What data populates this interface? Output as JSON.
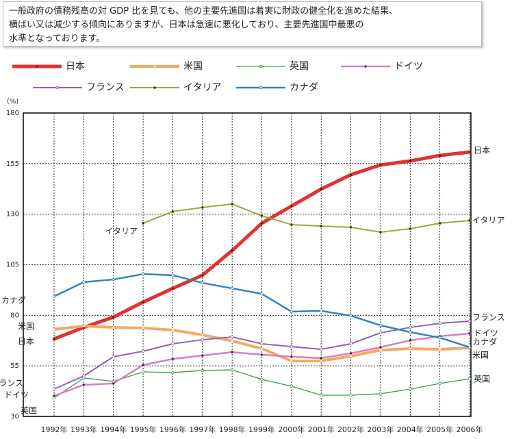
{
  "note": [
    "一般政府の債務残高の対 GDP 比を見ても、他の主要先進国は着実に財政の健全化を進めた結果、",
    "横ばい又は減少する傾向にありますが、日本は急速に悪化しており、主要先進国中最悪の",
    "水準となっております。"
  ],
  "chart_data": {
    "type": "line",
    "y_label": "(%)",
    "categories": [
      "1992年",
      "1993年",
      "1994年",
      "1995年",
      "1996年",
      "1997年",
      "1998年",
      "1999年",
      "2000年",
      "2001年",
      "2002年",
      "2003年",
      "2004年",
      "2005年",
      "2006年"
    ],
    "ylim": [
      30,
      180
    ],
    "yticks": [
      30,
      55,
      80,
      105,
      130,
      155,
      180
    ],
    "grid": true,
    "series": [
      {
        "name": "日本",
        "color": "#e2312f",
        "marker_fill": "#222",
        "width": 5,
        "values": [
          68.3,
          74,
          79.1,
          86.5,
          93.3,
          99.8,
          112,
          125.5,
          134,
          142.4,
          149.5,
          154.3,
          156.3,
          159,
          160.7
        ]
      },
      {
        "name": "米国",
        "color": "#f4a962",
        "marker_fill": "#fff",
        "width": 4,
        "values": [
          73,
          74.7,
          74,
          73.7,
          72.7,
          70.3,
          67.3,
          63.5,
          57.4,
          57.4,
          59.8,
          62.8,
          63.5,
          63.2,
          63.9
        ]
      },
      {
        "name": "英国",
        "color": "#3a9a4a",
        "marker_fill": "#fff",
        "width": 1.3,
        "values": [
          39.1,
          49,
          47.3,
          52,
          51.7,
          52.7,
          53,
          48.3,
          44.9,
          40.5,
          40.5,
          41.2,
          43.5,
          46.3,
          48.6
        ]
      },
      {
        "name": "ドイツ",
        "color": "#d47fc2",
        "marker_fill": "#222",
        "width": 2.5,
        "values": [
          40.2,
          45.6,
          46.3,
          55.4,
          58.4,
          60.1,
          61.8,
          60.5,
          59.5,
          58.8,
          61.2,
          64.2,
          67.6,
          69.6,
          71
        ]
      },
      {
        "name": "フランス",
        "color": "#9262b0",
        "marker_fill": "#fff",
        "width": 2,
        "values": [
          43.5,
          50,
          59.5,
          62.2,
          65.9,
          67.9,
          69.3,
          65.9,
          64.5,
          63.2,
          65.9,
          71.3,
          74,
          76,
          77.1
        ]
      },
      {
        "name": "イタリア",
        "color": "#a3a142",
        "marker_fill": "#222",
        "width": 2,
        "values": [
          null,
          null,
          null,
          125.5,
          131.3,
          133.3,
          135,
          129.2,
          124.8,
          124.1,
          123.5,
          121.1,
          122.8,
          125.5,
          126.9
        ]
      },
      {
        "name": "カナダ",
        "color": "#2f82c3",
        "marker_fill": "#fff",
        "width": 2.5,
        "values": [
          89.3,
          96.4,
          97.7,
          100.4,
          99.8,
          96,
          93.3,
          90.6,
          81.8,
          82.2,
          79.8,
          75,
          71.7,
          68.9,
          64.2
        ]
      }
    ]
  }
}
